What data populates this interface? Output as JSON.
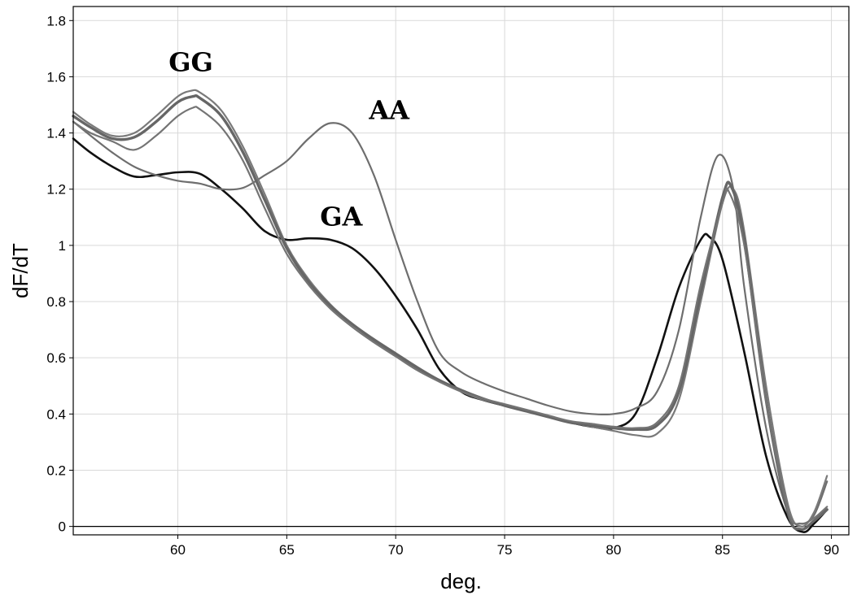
{
  "chart_data": {
    "type": "line",
    "xlabel": "deg.",
    "ylabel": "dF/dT",
    "xlim": [
      55.2,
      90.8
    ],
    "ylim": [
      -0.03,
      1.85
    ],
    "x_ticks": [
      60,
      65,
      70,
      75,
      80,
      85,
      90
    ],
    "y_ticks": [
      0,
      0.2,
      0.4,
      0.6,
      0.8,
      1,
      1.2,
      1.4,
      1.6,
      1.8
    ],
    "x_tick_labels": [
      "60",
      "65",
      "70",
      "75",
      "80",
      "85",
      "90"
    ],
    "y_tick_labels": [
      "0",
      "0.2",
      "0.4",
      "0.6",
      "0.8",
      "1",
      "1.2",
      "1.4",
      "1.6",
      "1.8"
    ],
    "grid": true,
    "annotations": [
      {
        "text": "GG",
        "x": 60.6,
        "y": 1.62
      },
      {
        "text": "AA",
        "x": 69.7,
        "y": 1.45
      },
      {
        "text": "GA",
        "x": 67.5,
        "y": 1.07
      }
    ],
    "series": [
      {
        "color": "#111111",
        "width": 2.6,
        "points": [
          [
            55.2,
            1.38
          ],
          [
            56,
            1.33
          ],
          [
            57,
            1.28
          ],
          [
            58,
            1.245
          ],
          [
            59,
            1.25
          ],
          [
            60,
            1.26
          ],
          [
            61,
            1.255
          ],
          [
            62,
            1.2
          ],
          [
            63,
            1.13
          ],
          [
            64,
            1.05
          ],
          [
            65,
            1.02
          ],
          [
            66,
            1.025
          ],
          [
            67,
            1.02
          ],
          [
            68,
            0.99
          ],
          [
            69,
            0.92
          ],
          [
            70,
            0.82
          ],
          [
            71,
            0.7
          ],
          [
            72,
            0.56
          ],
          [
            73,
            0.48
          ],
          [
            74,
            0.45
          ],
          [
            75,
            0.43
          ],
          [
            76,
            0.41
          ],
          [
            77,
            0.39
          ],
          [
            78,
            0.37
          ],
          [
            79,
            0.355
          ],
          [
            80,
            0.35
          ],
          [
            81,
            0.4
          ],
          [
            82,
            0.6
          ],
          [
            83,
            0.85
          ],
          [
            84,
            1.02
          ],
          [
            84.4,
            1.03
          ],
          [
            85,
            0.95
          ],
          [
            86,
            0.62
          ],
          [
            87,
            0.25
          ],
          [
            88,
            0.03
          ],
          [
            88.7,
            -0.02
          ],
          [
            89.2,
            0.01
          ],
          [
            89.8,
            0.06
          ]
        ]
      },
      {
        "color": "#6e6e6e",
        "width": 2.2,
        "points": [
          [
            55.2,
            1.44
          ],
          [
            56,
            1.39
          ],
          [
            57,
            1.33
          ],
          [
            58,
            1.28
          ],
          [
            59,
            1.25
          ],
          [
            60,
            1.23
          ],
          [
            61,
            1.22
          ],
          [
            62,
            1.2
          ],
          [
            63,
            1.205
          ],
          [
            64,
            1.25
          ],
          [
            65,
            1.3
          ],
          [
            66,
            1.38
          ],
          [
            67,
            1.435
          ],
          [
            68,
            1.4
          ],
          [
            69,
            1.25
          ],
          [
            70,
            1.02
          ],
          [
            71,
            0.8
          ],
          [
            72,
            0.62
          ],
          [
            73,
            0.55
          ],
          [
            74,
            0.51
          ],
          [
            75,
            0.48
          ],
          [
            76,
            0.455
          ],
          [
            77,
            0.43
          ],
          [
            78,
            0.41
          ],
          [
            79,
            0.4
          ],
          [
            80,
            0.4
          ],
          [
            81,
            0.42
          ],
          [
            82,
            0.48
          ],
          [
            83,
            0.7
          ],
          [
            84,
            1.1
          ],
          [
            84.8,
            1.32
          ],
          [
            85.5,
            1.2
          ],
          [
            86,
            0.85
          ],
          [
            87,
            0.35
          ],
          [
            88,
            0.05
          ],
          [
            88.6,
            0.01
          ],
          [
            89.2,
            0.04
          ],
          [
            89.8,
            0.16
          ]
        ]
      },
      {
        "color": "#7a7a7a",
        "width": 2.2,
        "points": [
          [
            55.2,
            1.475
          ],
          [
            56,
            1.43
          ],
          [
            57,
            1.39
          ],
          [
            58,
            1.4
          ],
          [
            59,
            1.46
          ],
          [
            60,
            1.53
          ],
          [
            60.6,
            1.55
          ],
          [
            61,
            1.545
          ],
          [
            62,
            1.48
          ],
          [
            63,
            1.35
          ],
          [
            64,
            1.18
          ],
          [
            65,
            1.0
          ],
          [
            66,
            0.88
          ],
          [
            67,
            0.79
          ],
          [
            68,
            0.72
          ],
          [
            69,
            0.66
          ],
          [
            70,
            0.61
          ],
          [
            71,
            0.56
          ],
          [
            72,
            0.52
          ],
          [
            73,
            0.48
          ],
          [
            74,
            0.45
          ],
          [
            75,
            0.43
          ],
          [
            76,
            0.41
          ],
          [
            77,
            0.39
          ],
          [
            78,
            0.37
          ],
          [
            79,
            0.355
          ],
          [
            80,
            0.34
          ],
          [
            81,
            0.325
          ],
          [
            82,
            0.33
          ],
          [
            83,
            0.45
          ],
          [
            84,
            0.8
          ],
          [
            85,
            1.15
          ],
          [
            85.5,
            1.2
          ],
          [
            86,
            1.05
          ],
          [
            87,
            0.5
          ],
          [
            88,
            0.08
          ],
          [
            88.6,
            0.0
          ],
          [
            89.2,
            0.05
          ],
          [
            89.8,
            0.18
          ]
        ]
      },
      {
        "color": "#666666",
        "width": 3.4,
        "points": [
          [
            55.2,
            1.46
          ],
          [
            56,
            1.42
          ],
          [
            57,
            1.38
          ],
          [
            58,
            1.385
          ],
          [
            59,
            1.44
          ],
          [
            60,
            1.51
          ],
          [
            60.7,
            1.53
          ],
          [
            61,
            1.525
          ],
          [
            62,
            1.46
          ],
          [
            63,
            1.33
          ],
          [
            64,
            1.16
          ],
          [
            65,
            0.99
          ],
          [
            66,
            0.87
          ],
          [
            67,
            0.785
          ],
          [
            68,
            0.72
          ],
          [
            69,
            0.665
          ],
          [
            70,
            0.615
          ],
          [
            71,
            0.565
          ],
          [
            72,
            0.52
          ],
          [
            73,
            0.485
          ],
          [
            74,
            0.455
          ],
          [
            75,
            0.43
          ],
          [
            76,
            0.41
          ],
          [
            77,
            0.39
          ],
          [
            78,
            0.37
          ],
          [
            79,
            0.36
          ],
          [
            80,
            0.35
          ],
          [
            81,
            0.345
          ],
          [
            82,
            0.36
          ],
          [
            83,
            0.48
          ],
          [
            84,
            0.83
          ],
          [
            85,
            1.17
          ],
          [
            85.4,
            1.21
          ],
          [
            86,
            1.02
          ],
          [
            87,
            0.45
          ],
          [
            88,
            0.05
          ],
          [
            88.6,
            -0.01
          ],
          [
            89.2,
            0.02
          ],
          [
            89.8,
            0.06
          ]
        ]
      },
      {
        "color": "#747474",
        "width": 2.2,
        "points": [
          [
            55.2,
            1.44
          ],
          [
            56,
            1.4
          ],
          [
            57,
            1.37
          ],
          [
            58,
            1.34
          ],
          [
            59,
            1.39
          ],
          [
            60,
            1.46
          ],
          [
            60.7,
            1.49
          ],
          [
            61,
            1.485
          ],
          [
            62,
            1.42
          ],
          [
            63,
            1.3
          ],
          [
            64,
            1.13
          ],
          [
            65,
            0.97
          ],
          [
            66,
            0.86
          ],
          [
            67,
            0.775
          ],
          [
            68,
            0.71
          ],
          [
            69,
            0.655
          ],
          [
            70,
            0.605
          ],
          [
            71,
            0.555
          ],
          [
            72,
            0.515
          ],
          [
            73,
            0.48
          ],
          [
            74,
            0.455
          ],
          [
            75,
            0.435
          ],
          [
            76,
            0.415
          ],
          [
            77,
            0.395
          ],
          [
            78,
            0.375
          ],
          [
            79,
            0.365
          ],
          [
            80,
            0.355
          ],
          [
            81,
            0.35
          ],
          [
            82,
            0.37
          ],
          [
            83,
            0.5
          ],
          [
            84,
            0.86
          ],
          [
            85,
            1.15
          ],
          [
            85.3,
            1.19
          ],
          [
            86,
            1.0
          ],
          [
            87,
            0.45
          ],
          [
            88,
            0.06
          ],
          [
            88.6,
            0.01
          ],
          [
            89.2,
            0.03
          ],
          [
            89.8,
            0.07
          ]
        ]
      }
    ]
  }
}
